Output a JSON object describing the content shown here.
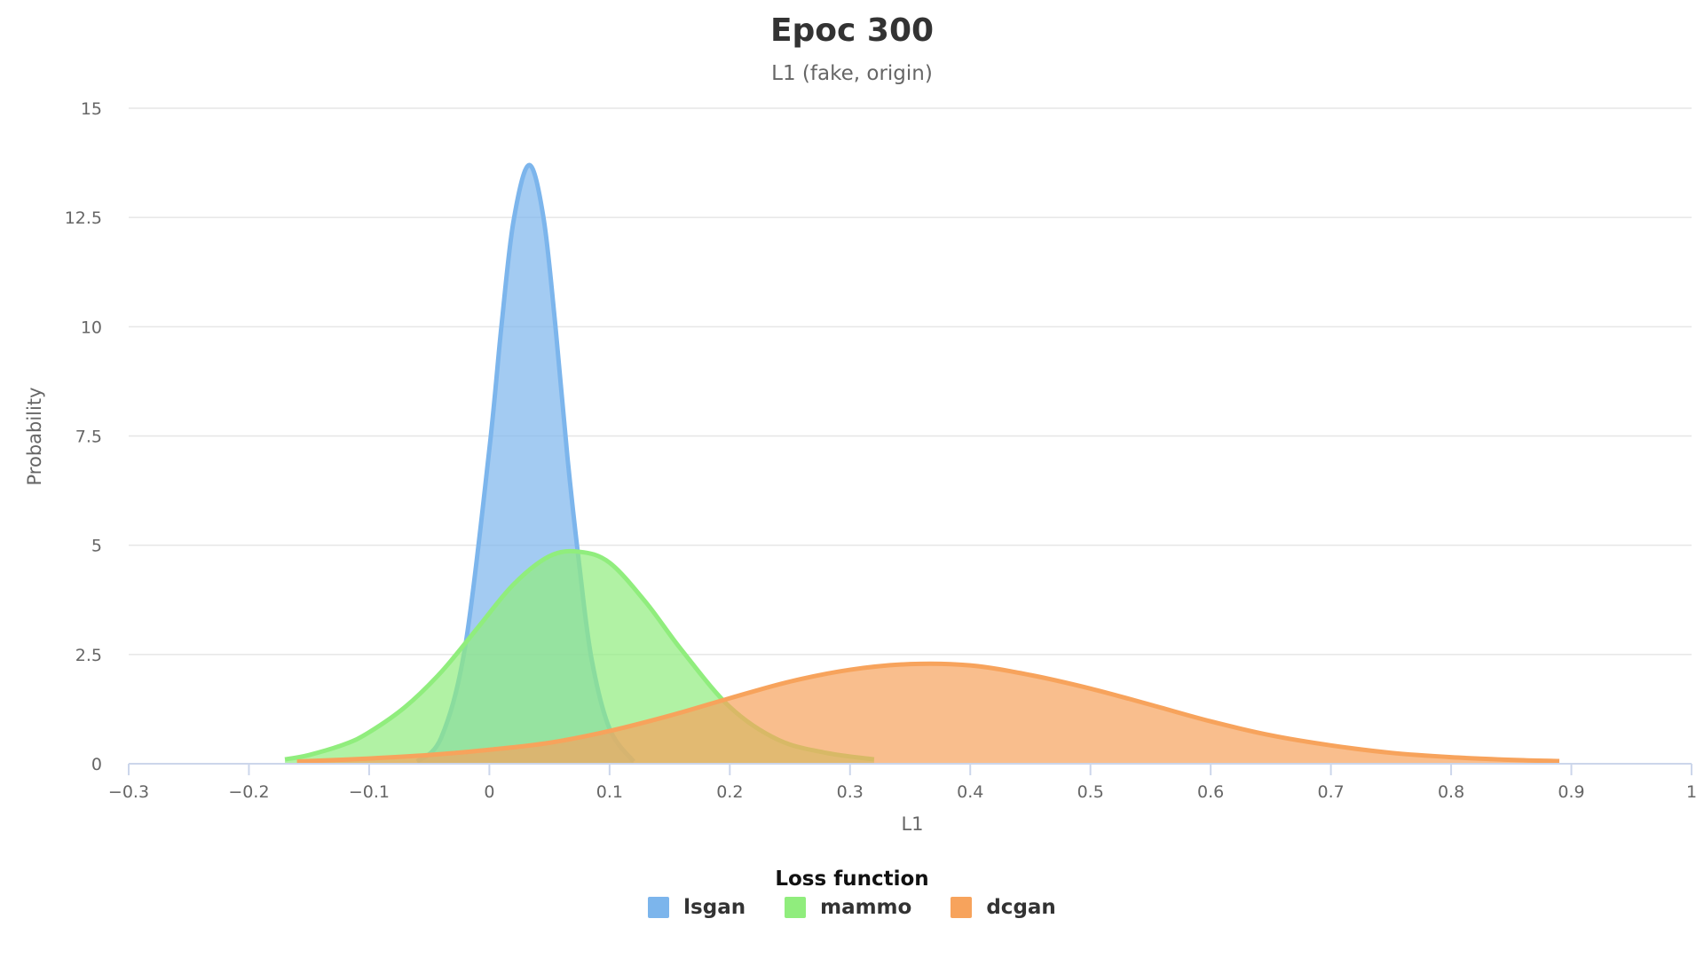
{
  "chart_data": {
    "type": "area",
    "title": "Epoc 300",
    "subtitle": "L1 (fake, origin)",
    "xlabel": "L1",
    "ylabel": "Probability",
    "xlim": [
      -0.3,
      1.0
    ],
    "ylim": [
      0,
      15
    ],
    "x_ticks": [
      -0.3,
      -0.2,
      -0.1,
      0,
      0.1,
      0.2,
      0.3,
      0.4,
      0.5,
      0.6,
      0.7,
      0.8,
      0.9,
      1
    ],
    "x_tick_labels": [
      "−0.3",
      "−0.2",
      "−0.1",
      "0",
      "0.1",
      "0.2",
      "0.3",
      "0.4",
      "0.5",
      "0.6",
      "0.7",
      "0.8",
      "0.9",
      "1"
    ],
    "y_ticks": [
      0,
      2.5,
      5,
      7.5,
      10,
      12.5,
      15
    ],
    "y_tick_labels": [
      "0",
      "2.5",
      "5",
      "7.5",
      "10",
      "12.5",
      "15"
    ],
    "grid": true,
    "legend": {
      "title": "Loss function",
      "position": "bottom-center"
    },
    "series": [
      {
        "name": "lsgan",
        "color": "#7cb5ec",
        "x": [
          -0.06,
          -0.04,
          -0.02,
          0.0,
          0.01,
          0.02,
          0.033,
          0.045,
          0.055,
          0.065,
          0.075,
          0.085,
          0.1,
          0.12
        ],
        "y": [
          0.05,
          0.6,
          2.7,
          7.2,
          10.0,
          12.4,
          13.7,
          12.5,
          10.0,
          7.0,
          4.5,
          2.4,
          0.8,
          0.05
        ]
      },
      {
        "name": "mammo",
        "color": "#90ed7d",
        "x": [
          -0.17,
          -0.15,
          -0.12,
          -0.1,
          -0.07,
          -0.04,
          -0.01,
          0.02,
          0.05,
          0.075,
          0.1,
          0.13,
          0.16,
          0.2,
          0.24,
          0.28,
          0.32
        ],
        "y": [
          0.1,
          0.2,
          0.45,
          0.72,
          1.3,
          2.1,
          3.1,
          4.1,
          4.75,
          4.85,
          4.6,
          3.7,
          2.6,
          1.3,
          0.55,
          0.25,
          0.1
        ]
      },
      {
        "name": "dcgan",
        "color": "#f7a35c",
        "x": [
          -0.16,
          -0.1,
          -0.05,
          0.0,
          0.05,
          0.1,
          0.15,
          0.2,
          0.25,
          0.3,
          0.35,
          0.4,
          0.45,
          0.5,
          0.55,
          0.6,
          0.65,
          0.7,
          0.75,
          0.8,
          0.85,
          0.89
        ],
        "y": [
          0.05,
          0.12,
          0.2,
          0.32,
          0.48,
          0.75,
          1.1,
          1.5,
          1.88,
          2.15,
          2.28,
          2.25,
          2.03,
          1.72,
          1.35,
          0.97,
          0.65,
          0.42,
          0.25,
          0.15,
          0.09,
          0.06
        ]
      }
    ]
  }
}
